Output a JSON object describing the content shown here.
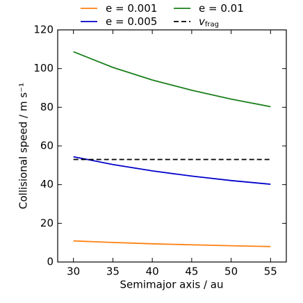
{
  "chart_data": {
    "type": "line",
    "x_label": "Semimajor axis / au",
    "y_label": "Collisional speed / m s⁻¹",
    "x": [
      30,
      35,
      40,
      45,
      50,
      55
    ],
    "series": [
      {
        "name": "e = 0.001",
        "color": "#ff7f0e",
        "style": "solid",
        "values": [
          10.9,
          10.1,
          9.4,
          8.9,
          8.4,
          8.0
        ]
      },
      {
        "name": "e = 0.005",
        "color": "#0000cc",
        "style": "solid",
        "values": [
          54.4,
          50.4,
          47.1,
          44.4,
          42.1,
          40.2
        ]
      },
      {
        "name": "e = 0.01",
        "color": "#1a7f1a",
        "style": "solid",
        "values": [
          108.7,
          100.6,
          94.1,
          88.8,
          84.2,
          80.3
        ]
      },
      {
        "name": "v",
        "name_sub": "frag",
        "color": "#000000",
        "style": "dashed",
        "values": [
          53,
          53,
          53,
          53,
          53,
          53
        ]
      }
    ],
    "xlim": [
      28,
      57
    ],
    "ylim": [
      0,
      120
    ],
    "xticks": [
      30,
      35,
      40,
      45,
      50,
      55
    ],
    "yticks": [
      0,
      20,
      40,
      60,
      80,
      100,
      120
    ]
  }
}
